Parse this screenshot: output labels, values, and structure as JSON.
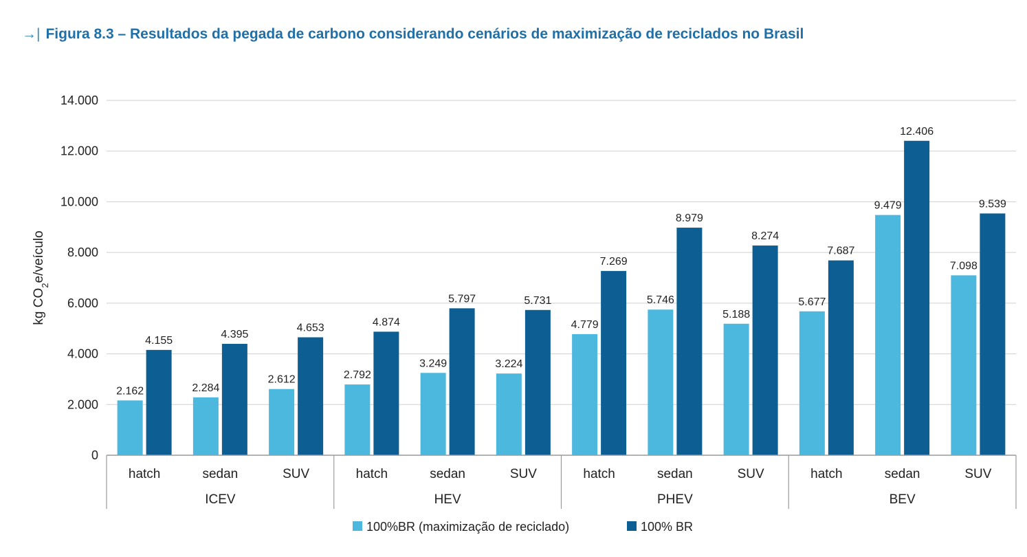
{
  "figure": {
    "arrow": "→|",
    "title": "Figura 8.3 – Resultados da pegada de carbono considerando cenários de maximização de reciclados no Brasil"
  },
  "chart_data": {
    "type": "bar",
    "ylabel": "kg CO2e/veículo",
    "ylabel_parts": {
      "pre": "kg CO",
      "sub": "2",
      "post": "e/veículo"
    },
    "ylim": [
      0,
      14000
    ],
    "yticks": [
      0,
      2000,
      4000,
      6000,
      8000,
      10000,
      12000,
      14000
    ],
    "ytick_labels": [
      "0",
      "2.000",
      "4.000",
      "6.000",
      "8.000",
      "10.000",
      "12.000",
      "14.000"
    ],
    "grid": true,
    "legend_position": "bottom-center",
    "groups": [
      {
        "name": "ICEV",
        "categories": [
          "hatch",
          "sedan",
          "SUV"
        ]
      },
      {
        "name": "HEV",
        "categories": [
          "hatch",
          "sedan",
          "SUV"
        ]
      },
      {
        "name": "PHEV",
        "categories": [
          "hatch",
          "sedan",
          "SUV"
        ]
      },
      {
        "name": "BEV",
        "categories": [
          "hatch",
          "sedan",
          "SUV"
        ]
      }
    ],
    "series": [
      {
        "name": "100%BR (maximização de reciclado)",
        "color": "#4db8de",
        "values": [
          2162,
          2284,
          2612,
          2792,
          3249,
          3224,
          4779,
          5746,
          5188,
          5677,
          9479,
          7098
        ],
        "labels": [
          "2.162",
          "2.284",
          "2.612",
          "2.792",
          "3.249",
          "3.224",
          "4.779",
          "5.746",
          "5.188",
          "5.677",
          "9.479",
          "7.098"
        ]
      },
      {
        "name": "100% BR",
        "color": "#0d5f93",
        "values": [
          4155,
          4395,
          4653,
          4874,
          5797,
          5731,
          7269,
          8979,
          8274,
          7687,
          12406,
          9539
        ],
        "labels": [
          "4.155",
          "4.395",
          "4.653",
          "4.874",
          "5.797",
          "5.731",
          "7.269",
          "8.979",
          "8.274",
          "7.687",
          "12.406",
          "9.539"
        ]
      }
    ]
  }
}
